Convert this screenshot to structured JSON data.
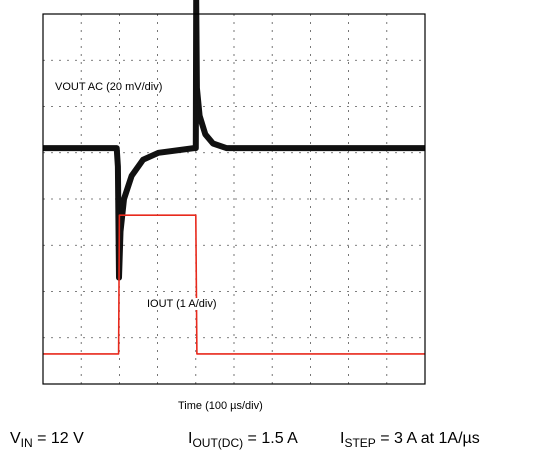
{
  "chart_data": {
    "type": "line",
    "title": "",
    "grid": true,
    "divisions": {
      "x": 10,
      "y": 8
    },
    "xlabel": "Time (100 µs/div)",
    "x_unit": "µs",
    "series": [
      {
        "name": "VOUT AC (20 mV/div)",
        "units": "mV (AC, relative to steady state)",
        "color": "#111111",
        "points": [
          [
            0,
            0
          ],
          [
            193,
            0
          ],
          [
            196,
            -8
          ],
          [
            199,
            -56
          ],
          [
            203,
            -36
          ],
          [
            212,
            -22
          ],
          [
            232,
            -12
          ],
          [
            262,
            -5
          ],
          [
            302,
            -2
          ],
          [
            395,
            0
          ],
          [
            400,
            0
          ],
          [
            401,
            64
          ],
          [
            403,
            26
          ],
          [
            410,
            14
          ],
          [
            425,
            6
          ],
          [
            445,
            2
          ],
          [
            480,
            0
          ],
          [
            1000,
            0
          ]
        ]
      },
      {
        "name": "IOUT (1 A/div)",
        "units": "A",
        "color": "#e8291c",
        "points": [
          [
            0,
            0
          ],
          [
            198,
            0
          ],
          [
            200,
            3
          ],
          [
            400,
            3
          ],
          [
            403,
            0
          ],
          [
            1000,
            0
          ]
        ]
      }
    ],
    "labels": {
      "vout": "VOUT AC (20 mV/div)",
      "iout": "IOUT (1 A/div)",
      "time": "Time (100 µs/div)"
    }
  },
  "conditions": {
    "vin_main": "V",
    "vin_sub": "IN",
    "vin_value": " = 12 V",
    "iout_main": "I",
    "iout_sub": "OUT(DC)",
    "iout_value": " = 1.5 A",
    "istep_main": "I",
    "istep_sub": "STEP",
    "istep_value": " = 3 A at 1A/µs"
  }
}
